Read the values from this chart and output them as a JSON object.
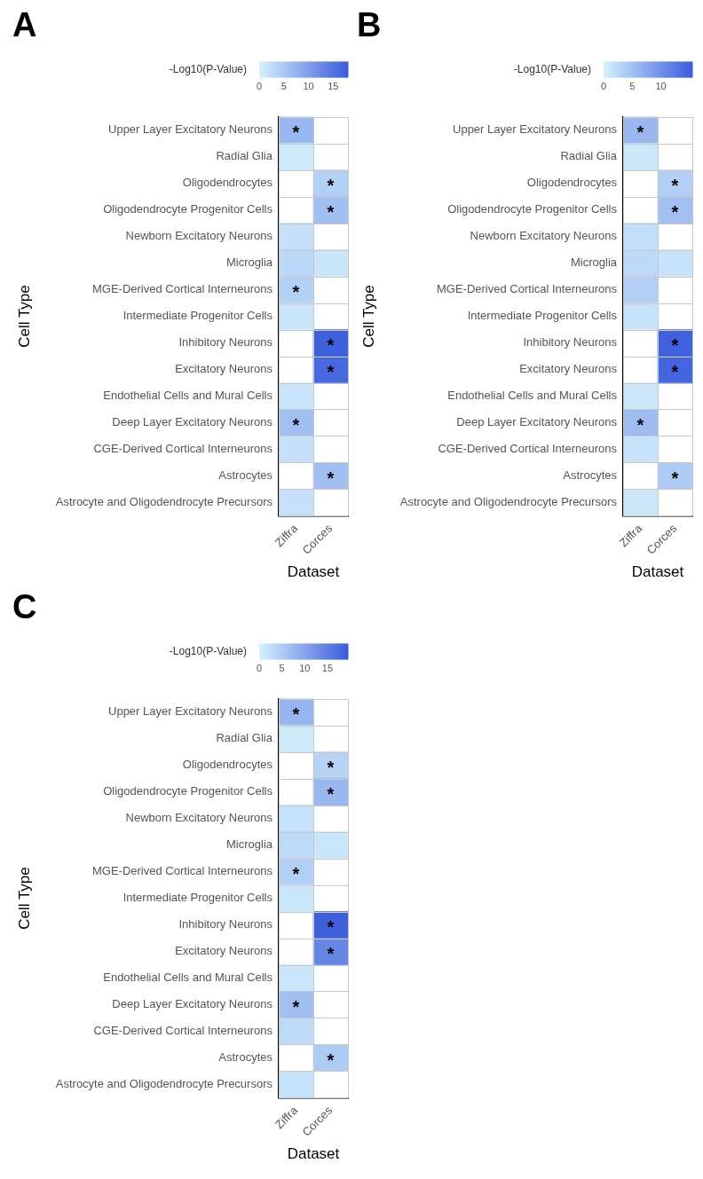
{
  "chart_data": [
    {
      "type": "heatmap",
      "title": "A",
      "xlabel": "Dataset",
      "ylabel": "Cell Type",
      "clabel": "-Log10(P-Value)",
      "categories": [
        "Ziffra",
        "Corces"
      ],
      "y_categories": [
        "Upper Layer Excitatory Neurons",
        "Radial Glia",
        "Oligodendrocytes",
        "Oligodendrocyte Progenitor Cells",
        "Newborn Excitatory Neurons",
        "Microglia",
        "MGE-Derived Cortical Interneurons",
        "Intermediate Progenitor Cells",
        "Inhibitory Neurons",
        "Excitatory Neurons",
        "Endothelial Cells and Mural Cells",
        "Deep Layer Excitatory Neurons",
        "CGE-Derived Cortical Interneurons",
        "Astrocytes",
        "Astrocyte and Oligodendrocyte Precursors"
      ],
      "cells": [
        [
          7,
          null
        ],
        [
          1,
          null
        ],
        [
          null,
          4
        ],
        [
          null,
          6
        ],
        [
          2,
          null
        ],
        [
          3,
          1.5
        ],
        [
          4,
          null
        ],
        [
          1.5,
          null
        ],
        [
          null,
          17.5
        ],
        [
          null,
          16.5
        ],
        [
          1.5,
          null
        ],
        [
          6,
          null
        ],
        [
          2,
          null
        ],
        [
          null,
          6
        ],
        [
          2,
          null
        ]
      ],
      "cell_labels": [
        [
          "*",
          null
        ],
        [
          null,
          null
        ],
        [
          null,
          "*"
        ],
        [
          null,
          "*"
        ],
        [
          null,
          null
        ],
        [
          null,
          null
        ],
        [
          "*",
          null
        ],
        [
          null,
          null
        ],
        [
          null,
          "*"
        ],
        [
          null,
          "*"
        ],
        [
          null,
          null
        ],
        [
          "*",
          null
        ],
        [
          null,
          null
        ],
        [
          null,
          "*"
        ],
        [
          null,
          null
        ]
      ],
      "clim": [
        0,
        18
      ],
      "cticks": [
        0,
        5,
        10,
        15
      ],
      "grid": true
    },
    {
      "type": "heatmap",
      "title": "B",
      "xlabel": "Dataset",
      "ylabel": "Cell Type",
      "clabel": "-Log10(P-Value)",
      "categories": [
        "Ziffra",
        "Corces"
      ],
      "y_categories": [
        "Upper Layer Excitatory Neurons",
        "Radial Glia",
        "Oligodendrocytes",
        "Oligodendrocyte Progenitor Cells",
        "Newborn Excitatory Neurons",
        "Microglia",
        "MGE-Derived Cortical Interneurons",
        "Intermediate Progenitor Cells",
        "Inhibitory Neurons",
        "Excitatory Neurons",
        "Endothelial Cells and Mural Cells",
        "Deep Layer Excitatory Neurons",
        "CGE-Derived Cortical Interneurons",
        "Astrocytes",
        "Astrocyte and Oligodendrocyte Precursors"
      ],
      "cells": [
        [
          6,
          null
        ],
        [
          1,
          null
        ],
        [
          null,
          3.5
        ],
        [
          null,
          5
        ],
        [
          2,
          null
        ],
        [
          2.5,
          1.5
        ],
        [
          3.5,
          null
        ],
        [
          1.5,
          null
        ],
        [
          null,
          15
        ],
        [
          null,
          14.5
        ],
        [
          1,
          null
        ],
        [
          5.5,
          null
        ],
        [
          1.5,
          null
        ],
        [
          null,
          4
        ],
        [
          1,
          null
        ]
      ],
      "cell_labels": [
        [
          "*",
          null
        ],
        [
          null,
          null
        ],
        [
          null,
          "*"
        ],
        [
          null,
          "*"
        ],
        [
          null,
          null
        ],
        [
          null,
          null
        ],
        [
          null,
          null
        ],
        [
          null,
          null
        ],
        [
          null,
          "*"
        ],
        [
          null,
          "*"
        ],
        [
          null,
          null
        ],
        [
          "*",
          null
        ],
        [
          null,
          null
        ],
        [
          null,
          "*"
        ],
        [
          null,
          null
        ]
      ],
      "clim": [
        0,
        15.5
      ],
      "cticks": [
        0,
        5,
        10
      ],
      "grid": true
    },
    {
      "type": "heatmap",
      "title": "C",
      "xlabel": "Dataset",
      "ylabel": "Cell Type",
      "clabel": "-Log10(P-Value)",
      "categories": [
        "Ziffra",
        "Corces"
      ],
      "y_categories": [
        "Upper Layer Excitatory Neurons",
        "Radial Glia",
        "Oligodendrocytes",
        "Oligodendrocyte Progenitor Cells",
        "Newborn Excitatory Neurons",
        "Microglia",
        "MGE-Derived Cortical Interneurons",
        "Intermediate Progenitor Cells",
        "Inhibitory Neurons",
        "Excitatory Neurons",
        "Endothelial Cells and Mural Cells",
        "Deep Layer Excitatory Neurons",
        "CGE-Derived Cortical Interneurons",
        "Astrocytes",
        "Astrocyte and Oligodendrocyte Precursors"
      ],
      "cells": [
        [
          8,
          null
        ],
        [
          1,
          null
        ],
        [
          null,
          4
        ],
        [
          null,
          7.5
        ],
        [
          2,
          null
        ],
        [
          3,
          1.5
        ],
        [
          4.5,
          null
        ],
        [
          1.5,
          null
        ],
        [
          null,
          19
        ],
        [
          null,
          14
        ],
        [
          1.5,
          null
        ],
        [
          6.5,
          null
        ],
        [
          3,
          null
        ],
        [
          null,
          5
        ],
        [
          2,
          null
        ]
      ],
      "cell_labels": [
        [
          "*",
          null
        ],
        [
          null,
          null
        ],
        [
          null,
          "*"
        ],
        [
          null,
          "*"
        ],
        [
          null,
          null
        ],
        [
          null,
          null
        ],
        [
          "*",
          null
        ],
        [
          null,
          null
        ],
        [
          null,
          "*"
        ],
        [
          null,
          "*"
        ],
        [
          null,
          null
        ],
        [
          "*",
          null
        ],
        [
          null,
          null
        ],
        [
          null,
          "*"
        ],
        [
          null,
          null
        ]
      ],
      "clim": [
        0,
        19.5
      ],
      "cticks": [
        0,
        5,
        10,
        15
      ],
      "grid": true
    }
  ]
}
